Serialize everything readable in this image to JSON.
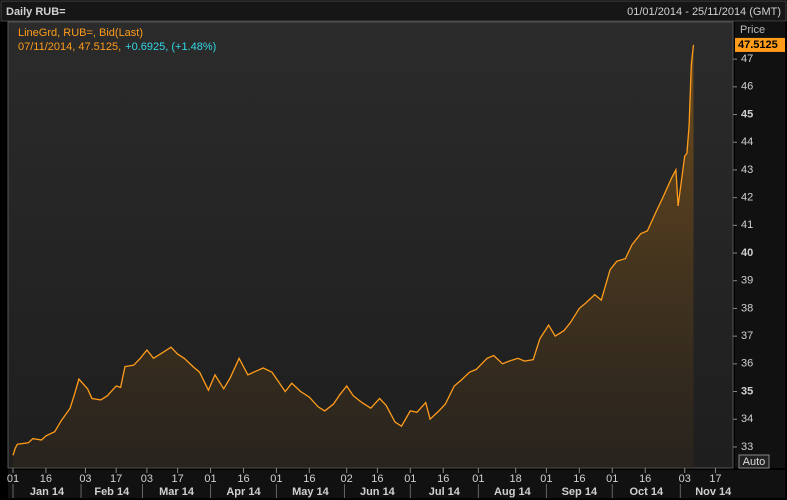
{
  "chart_data": {
    "type": "line",
    "title": "Daily RUB=",
    "date_range": "01/01/2014 - 25/11/2014 (GMT)",
    "legend_line": "LineGrd, RUB=, Bid(Last)",
    "status_text": "07/11/2014, 47.5125,",
    "status_change": "+0.6925, (+1.48%)",
    "y_axis_label": "Price",
    "button": "Auto",
    "grid": false,
    "x": [
      "2014-01-01",
      "2014-01-02",
      "2014-01-03",
      "2014-01-08",
      "2014-01-10",
      "2014-01-14",
      "2014-01-16",
      "2014-01-20",
      "2014-01-23",
      "2014-01-27",
      "2014-01-29",
      "2014-01-31",
      "2014-02-04",
      "2014-02-06",
      "2014-02-10",
      "2014-02-13",
      "2014-02-17",
      "2014-02-19",
      "2014-02-21",
      "2014-02-25",
      "2014-02-28",
      "2014-03-03",
      "2014-03-06",
      "2014-03-10",
      "2014-03-14",
      "2014-03-17",
      "2014-03-20",
      "2014-03-24",
      "2014-03-27",
      "2014-03-31",
      "2014-04-03",
      "2014-04-07",
      "2014-04-10",
      "2014-04-14",
      "2014-04-18",
      "2014-04-22",
      "2014-04-25",
      "2014-04-29",
      "2014-05-05",
      "2014-05-08",
      "2014-05-12",
      "2014-05-16",
      "2014-05-20",
      "2014-05-23",
      "2014-05-27",
      "2014-05-30",
      "2014-06-02",
      "2014-06-05",
      "2014-06-09",
      "2014-06-13",
      "2014-06-17",
      "2014-06-20",
      "2014-06-24",
      "2014-06-27",
      "2014-07-01",
      "2014-07-04",
      "2014-07-08",
      "2014-07-10",
      "2014-07-14",
      "2014-07-17",
      "2014-07-21",
      "2014-07-24",
      "2014-07-28",
      "2014-07-31",
      "2014-08-05",
      "2014-08-08",
      "2014-08-12",
      "2014-08-15",
      "2014-08-19",
      "2014-08-22",
      "2014-08-26",
      "2014-08-29",
      "2014-09-02",
      "2014-09-05",
      "2014-09-09",
      "2014-09-12",
      "2014-09-16",
      "2014-09-19",
      "2014-09-23",
      "2014-09-26",
      "2014-09-30",
      "2014-10-03",
      "2014-10-07",
      "2014-10-10",
      "2014-10-14",
      "2014-10-17",
      "2014-10-21",
      "2014-10-24",
      "2014-10-28",
      "2014-10-30",
      "2014-10-31",
      "2014-11-03",
      "2014-11-04",
      "2014-11-05",
      "2014-11-06",
      "2014-11-07"
    ],
    "series": [
      {
        "name": "RUB=",
        "color": "#ff9c1a",
        "values": [
          32.7,
          32.95,
          33.1,
          33.15,
          33.3,
          33.25,
          33.4,
          33.55,
          33.95,
          34.4,
          34.9,
          35.45,
          35.1,
          34.75,
          34.7,
          34.85,
          35.2,
          35.15,
          35.9,
          35.95,
          36.2,
          36.5,
          36.2,
          36.4,
          36.6,
          36.35,
          36.2,
          35.9,
          35.7,
          35.05,
          35.6,
          35.1,
          35.5,
          36.2,
          35.6,
          35.75,
          35.85,
          35.7,
          35.0,
          35.3,
          35.0,
          34.8,
          34.45,
          34.3,
          34.55,
          34.9,
          35.2,
          34.85,
          34.6,
          34.4,
          34.75,
          34.5,
          33.9,
          33.75,
          34.3,
          34.25,
          34.6,
          34.0,
          34.3,
          34.55,
          35.2,
          35.4,
          35.7,
          35.8,
          36.2,
          36.3,
          36.0,
          36.1,
          36.2,
          36.1,
          36.15,
          36.9,
          37.4,
          37.0,
          37.2,
          37.5,
          38.0,
          38.2,
          38.5,
          38.3,
          39.4,
          39.7,
          39.8,
          40.3,
          40.7,
          40.8,
          41.5,
          42.0,
          42.7,
          43.0,
          41.7,
          43.5,
          43.6,
          44.6,
          46.8,
          47.5125
        ]
      }
    ],
    "xlim": [
      "2014-01-01",
      "2014-11-25"
    ],
    "xticks": [
      {
        "value": "2014-01-01",
        "label": "01"
      },
      {
        "value": "2014-01-16",
        "label": "16"
      },
      {
        "value": "2014-02-03",
        "label": "03"
      },
      {
        "value": "2014-02-17",
        "label": "17"
      },
      {
        "value": "2014-03-03",
        "label": "03"
      },
      {
        "value": "2014-03-17",
        "label": "17"
      },
      {
        "value": "2014-04-01",
        "label": "01"
      },
      {
        "value": "2014-04-16",
        "label": "16"
      },
      {
        "value": "2014-05-01",
        "label": "01"
      },
      {
        "value": "2014-05-16",
        "label": "16"
      },
      {
        "value": "2014-06-02",
        "label": "02"
      },
      {
        "value": "2014-06-16",
        "label": "16"
      },
      {
        "value": "2014-07-01",
        "label": "01"
      },
      {
        "value": "2014-07-16",
        "label": "16"
      },
      {
        "value": "2014-08-01",
        "label": "01"
      },
      {
        "value": "2014-08-18",
        "label": "18"
      },
      {
        "value": "2014-09-01",
        "label": "01"
      },
      {
        "value": "2014-09-16",
        "label": "16"
      },
      {
        "value": "2014-10-01",
        "label": "01"
      },
      {
        "value": "2014-10-16",
        "label": "16"
      },
      {
        "value": "2014-11-03",
        "label": "03"
      },
      {
        "value": "2014-11-17",
        "label": "17"
      }
    ],
    "month_labels": [
      {
        "value": "2014-01-01",
        "label": "Jan 14"
      },
      {
        "value": "2014-02-01",
        "label": "Feb 14"
      },
      {
        "value": "2014-03-01",
        "label": "Mar 14"
      },
      {
        "value": "2014-04-01",
        "label": "Apr 14"
      },
      {
        "value": "2014-05-01",
        "label": "May 14"
      },
      {
        "value": "2014-06-01",
        "label": "Jun 14"
      },
      {
        "value": "2014-07-01",
        "label": "Jul 14"
      },
      {
        "value": "2014-08-01",
        "label": "Aug 14"
      },
      {
        "value": "2014-09-01",
        "label": "Sep 14"
      },
      {
        "value": "2014-10-01",
        "label": "Oct 14"
      },
      {
        "value": "2014-11-01",
        "label": "Nov 14"
      }
    ],
    "ylim": [
      32.24,
      48.34
    ],
    "yticks": [
      33,
      34,
      35,
      36,
      37,
      38,
      39,
      40,
      41,
      42,
      43,
      44,
      45,
      46,
      47
    ]
  }
}
